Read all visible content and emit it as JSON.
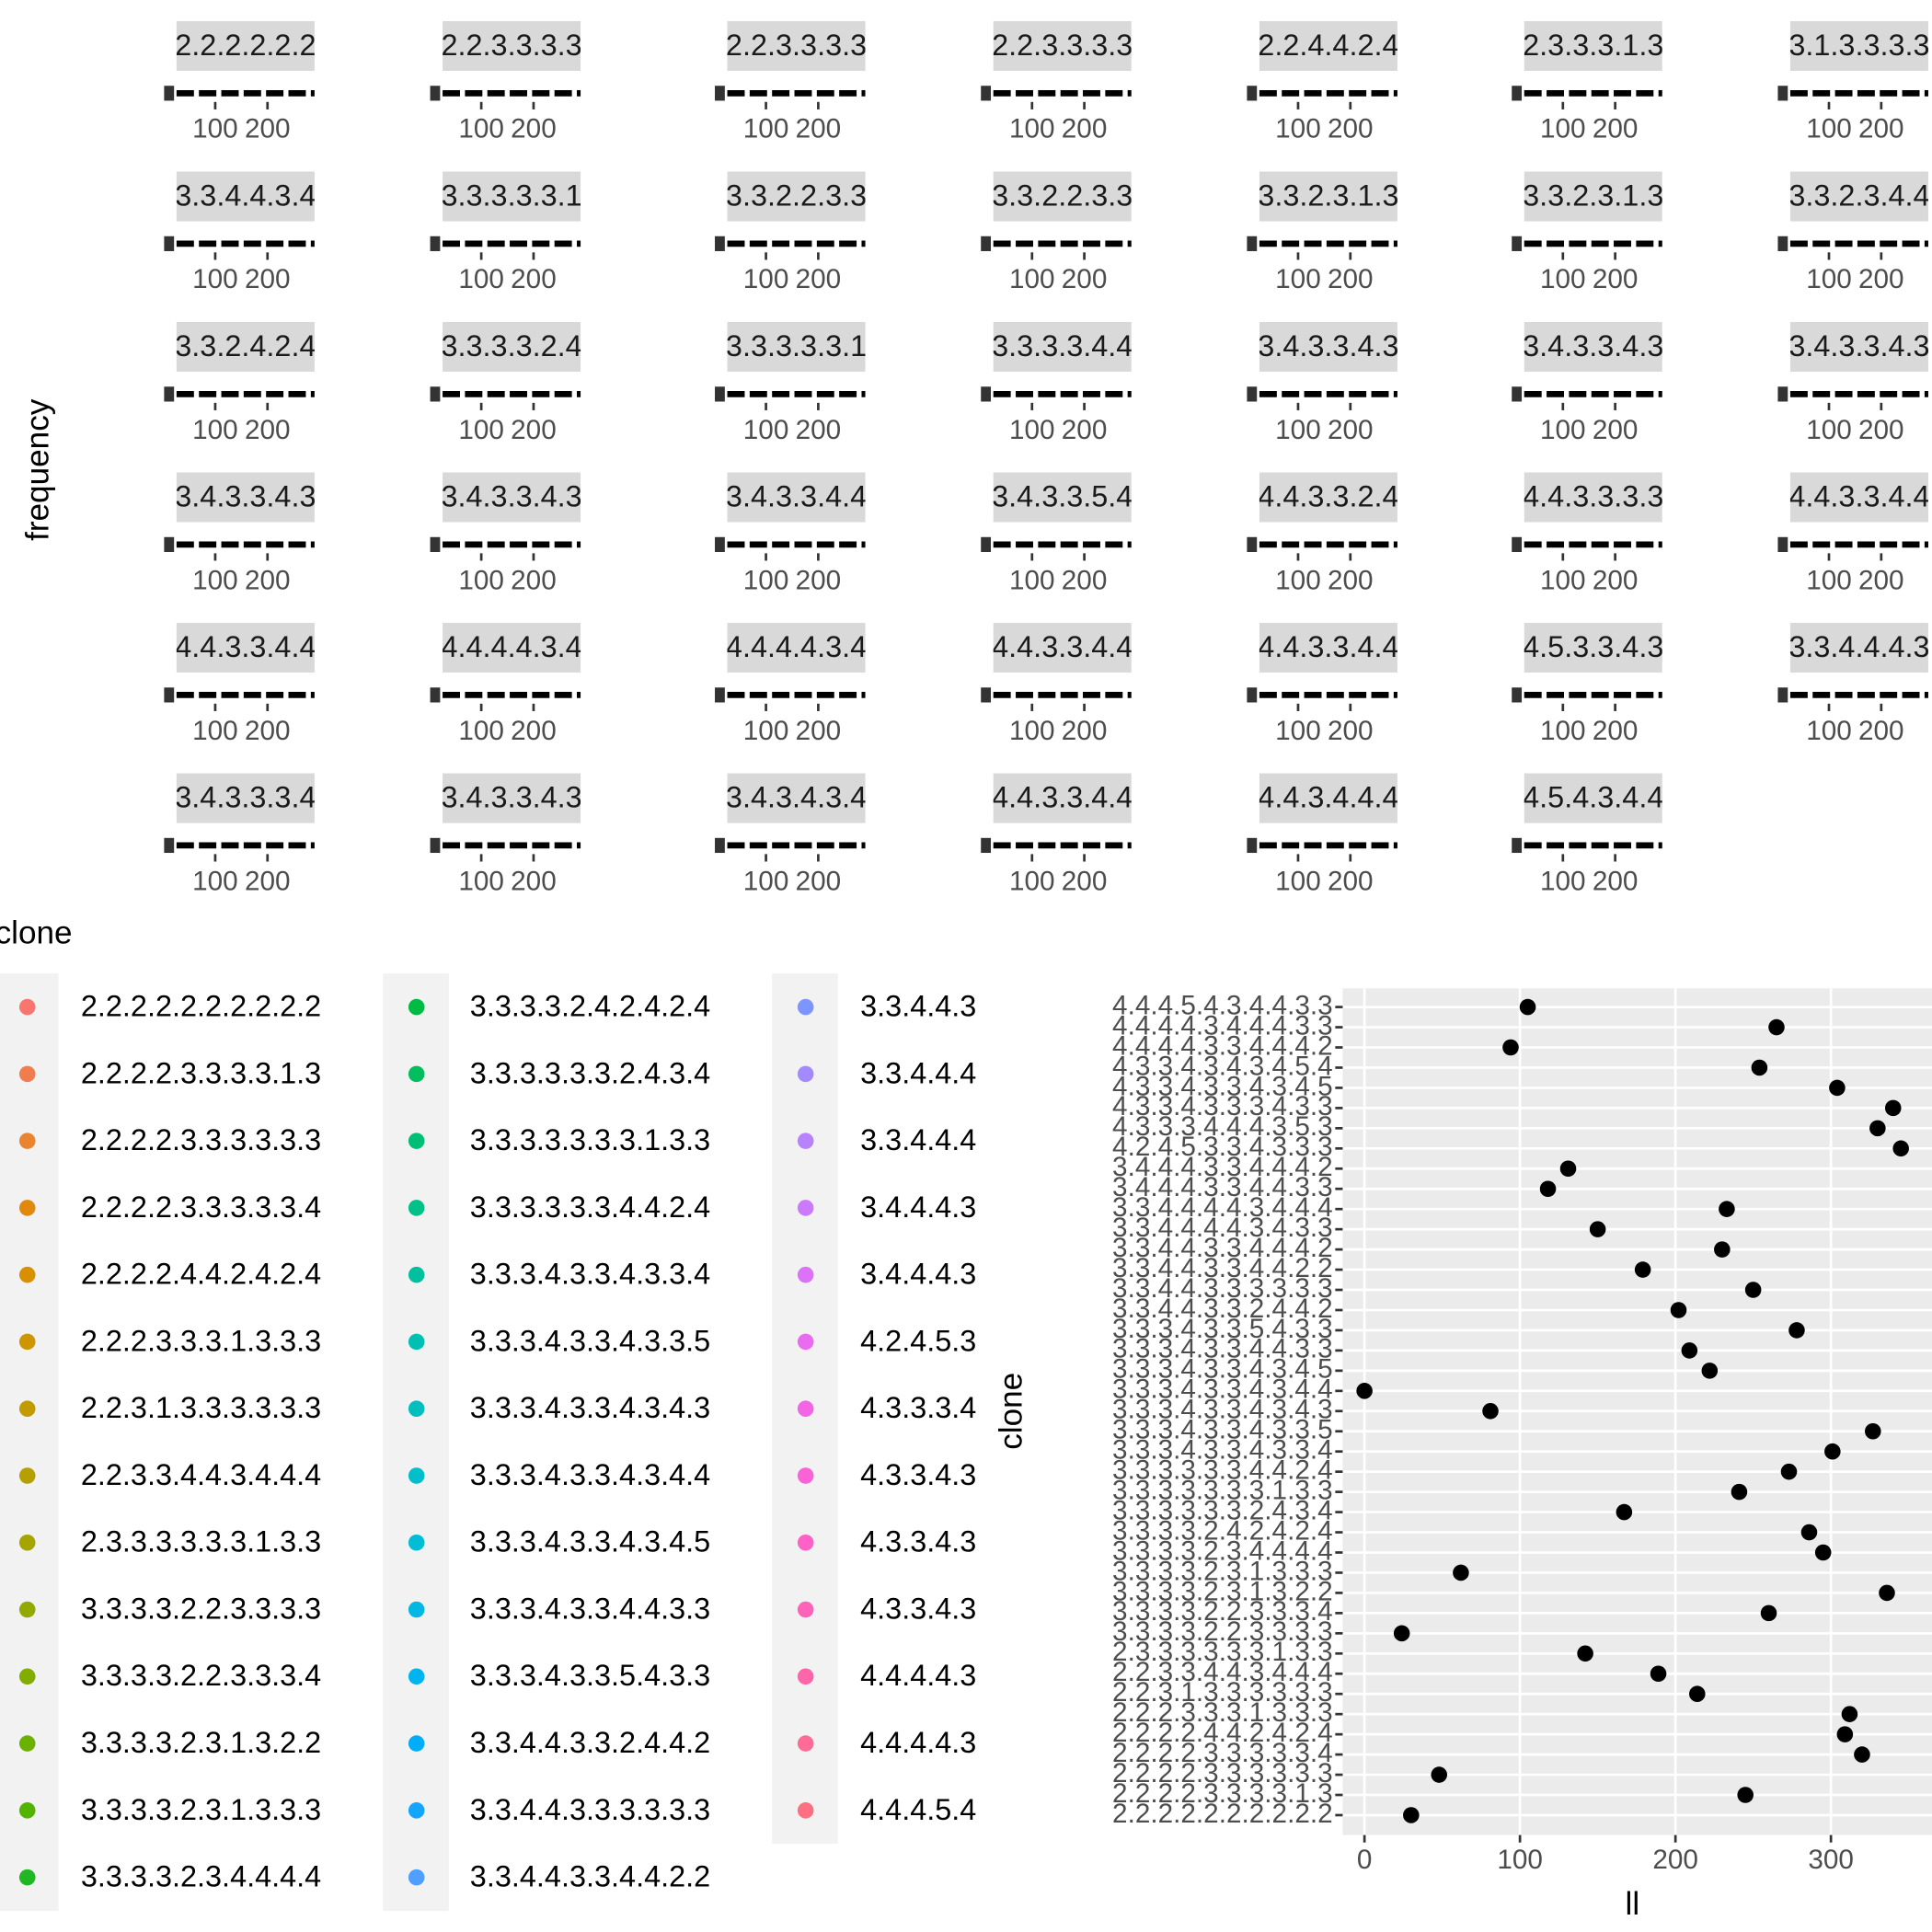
{
  "chart_data": [
    {
      "type": "facet",
      "y_label": "frequency",
      "xlim": [
        26,
        290
      ],
      "xticks": [
        100,
        200
      ]
    },
    {
      "type": "dot",
      "legend_title": "clone",
      "y_label": "clone",
      "x_label": "ll",
      "categories": [
        "2.2.2.2.2.2.2.2.2.2",
        "2.2.2.2.3.3.3.3.1.3",
        "2.2.2.2.3.3.3.3.3.3",
        "2.2.2.2.3.3.3.3.3.4",
        "2.2.2.2.4.4.2.4.2.4",
        "2.2.2.3.3.3.1.3.3.3",
        "2.2.3.1.3.3.3.3.3.3",
        "2.2.3.3.4.4.3.4.4.4",
        "2.3.3.3.3.3.3.1.3.3",
        "3.3.3.3.2.2.3.3.3.3",
        "3.3.3.3.2.2.3.3.3.4",
        "3.3.3.3.2.3.1.3.2.2",
        "3.3.3.3.2.3.1.3.3.3",
        "3.3.3.3.2.3.4.4.4.4",
        "3.3.3.3.2.4.2.4.2.4",
        "3.3.3.3.3.3.2.4.3.4",
        "3.3.3.3.3.3.3.1.3.3",
        "3.3.3.3.3.3.4.4.2.4",
        "3.3.3.4.3.3.4.3.3.4",
        "3.3.3.4.3.3.4.3.3.5",
        "3.3.3.4.3.3.4.3.4.3",
        "3.3.3.4.3.3.4.3.4.4",
        "3.3.3.4.3.3.4.3.4.5",
        "3.3.3.4.3.3.4.4.3.3",
        "3.3.3.4.3.3.5.4.3.3",
        "3.3.4.4.3.3.2.4.4.2",
        "3.3.4.4.3.3.3.3.3.3",
        "3.3.4.4.3.3.4.4.2.2",
        "3.3.4.4.3.3.4.4.4.2",
        "3.3.4.4.4.4.3.4.3.3",
        "3.3.4.4.4.4.3.4.4.4",
        "3.4.4.4.3.3.4.4.3.3",
        "3.4.4.4.3.3.4.4.4.2",
        "4.2.4.5.3.3.4.3.3.3",
        "4.3.3.3.4.4.4.3.5.3",
        "4.3.3.4.3.3.3.4.3.3",
        "4.3.3.4.3.3.4.3.4.5",
        "4.3.3.4.3.4.3.4.5.4",
        "4.4.4.4.3.3.4.4.4.2",
        "4.4.4.4.3.4.4.4.3.3",
        "4.4.4.5.4.3.4.4.3.3"
      ],
      "colors": [
        "#F8766D",
        "#F17D4E",
        "#EA842F",
        "#E1890E",
        "#D88F00",
        "#CE9500",
        "#C29B00",
        "#B4A000",
        "#A5A400",
        "#94A900",
        "#81AD00",
        "#6AB100",
        "#52B401",
        "#20B822",
        "#00BB41",
        "#00BD5D",
        "#00BF74",
        "#00C089",
        "#00C09E",
        "#00C0B2",
        "#00BFBE",
        "#00BECA",
        "#00BCD5",
        "#00B8E3",
        "#00B4F0",
        "#00ADF9",
        "#14A6FF",
        "#4E9FFF",
        "#7C95FF",
        "#A38BFF",
        "#B882FF",
        "#CB7AFE",
        "#DB72F8",
        "#E96BF0",
        "#F365E5",
        "#FA63D7",
        "#FF61C7",
        "#FF63B9",
        "#FF66A9",
        "#FF6B97",
        "#FC7082"
      ],
      "values": [
        30,
        245,
        48,
        320,
        309,
        312,
        214,
        189,
        142,
        24,
        260,
        336,
        62,
        295,
        286,
        167,
        241,
        273,
        301,
        327,
        81,
        0,
        222,
        209,
        278,
        202,
        250,
        179,
        230,
        150,
        233,
        118,
        131,
        345,
        330,
        340,
        304,
        254,
        94,
        265,
        105
      ],
      "xlim": [
        -14,
        365
      ],
      "xticks": [
        0,
        100,
        200,
        300
      ]
    }
  ]
}
